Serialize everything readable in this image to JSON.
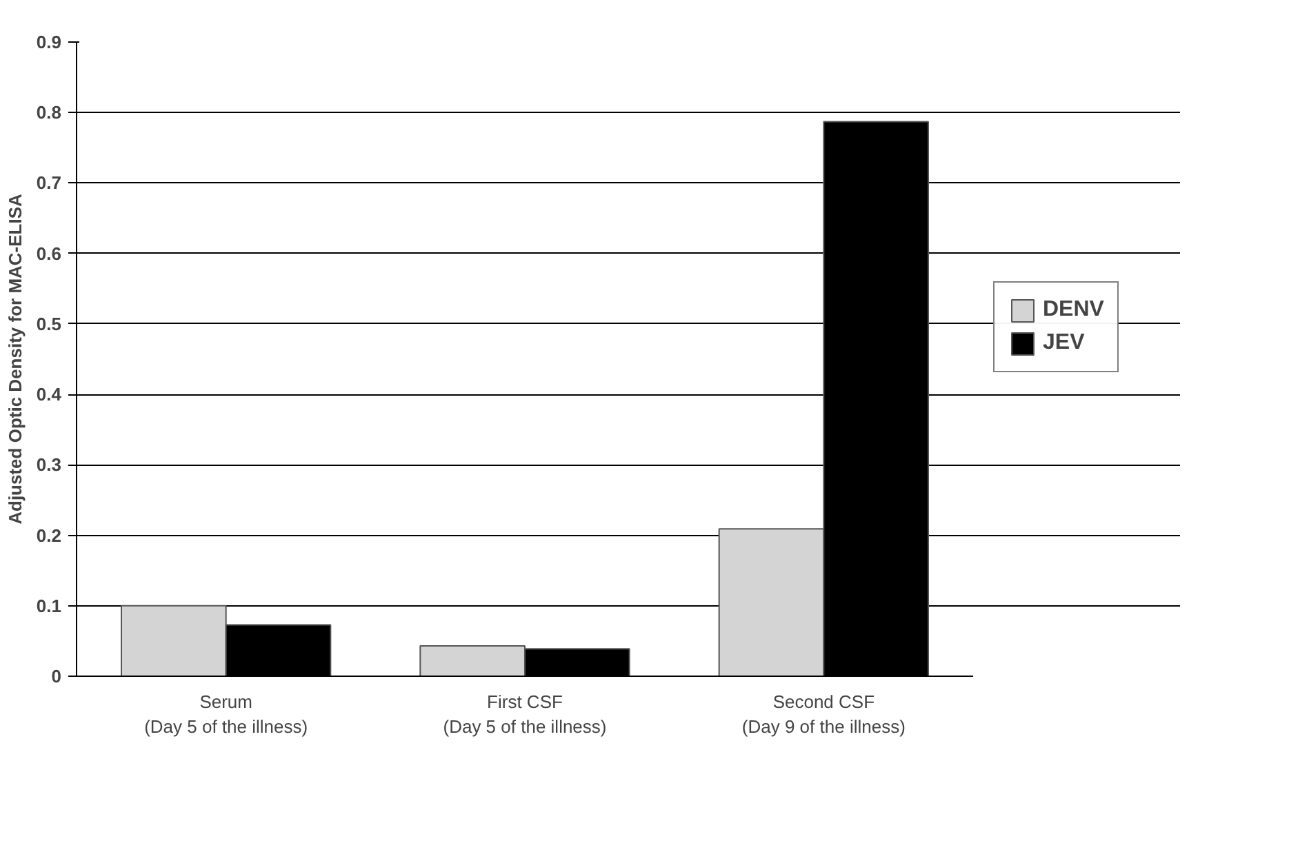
{
  "chart_data": {
    "type": "bar",
    "ylabel": "Adjusted Optic Density for MAC-ELISA",
    "categories": [
      "Serum\n(Day 5 of the illness)",
      "First CSF\n(Day 5 of the illness)",
      "Second CSF\n(Day 9 of the illness)"
    ],
    "series": [
      {
        "name": "DENV",
        "color": "#d4d4d4",
        "values": [
          0.1,
          0.043,
          0.209
        ]
      },
      {
        "name": "JEV",
        "color": "#000000",
        "values": [
          0.073,
          0.039,
          0.787
        ]
      }
    ],
    "ylim": [
      0,
      0.9
    ],
    "yticks": [
      0,
      0.1,
      0.2,
      0.3,
      0.4,
      0.5,
      0.6,
      0.7,
      0.8,
      0.9
    ],
    "grid": "y",
    "legend": "right"
  }
}
